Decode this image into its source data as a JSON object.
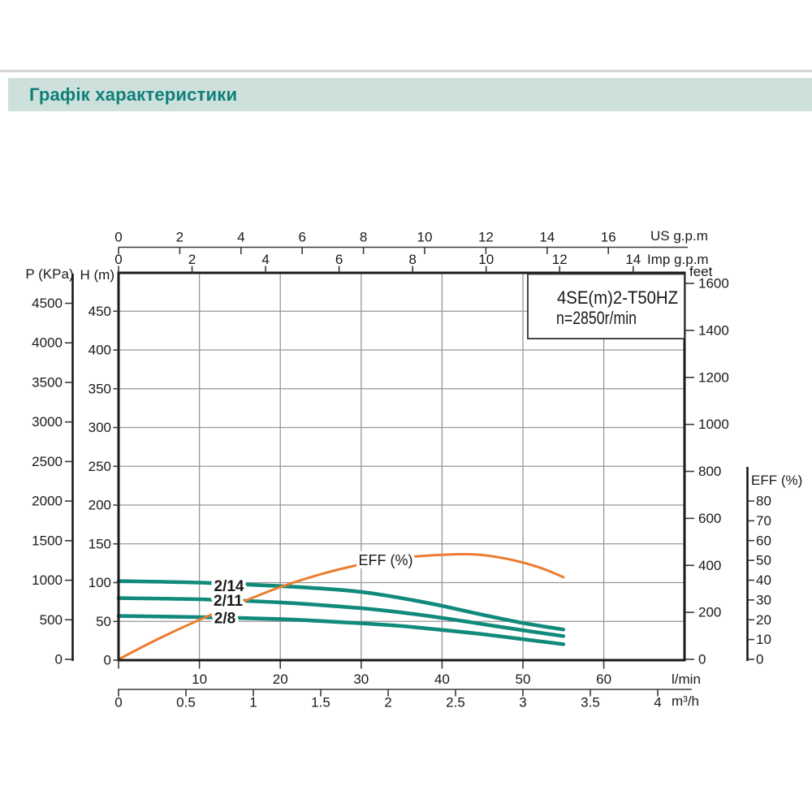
{
  "header": {
    "title": "Графік характеристики"
  },
  "colors": {
    "header_band_bg": "#cee0dc",
    "header_title": "#0f8078",
    "separator_gray": "#d4d4d4",
    "frame": "#1a1a1a",
    "grid": "#979797",
    "axis_text": "#1a1a1a",
    "curve_teal": "#118a7b",
    "curve_orange": "#ec7c30"
  },
  "chart_data": {
    "type": "line",
    "model_box": {
      "line1": "4SE(m)2-T50HZ",
      "line2": "n=2850r/min"
    },
    "x_axes": {
      "us_gpm": {
        "label": "US g.p.m",
        "ticks": [
          0,
          2,
          4,
          6,
          8,
          10,
          12,
          14,
          16
        ]
      },
      "imp_gpm": {
        "label": "Imp g.p.m",
        "ticks": [
          0,
          2,
          4,
          6,
          8,
          10,
          12,
          14
        ]
      },
      "l_min": {
        "label": "l/min",
        "ticks": [
          10,
          20,
          30,
          40,
          50,
          60
        ]
      },
      "m3_h": {
        "label": "m³/h",
        "ticks": [
          "0",
          "0.5",
          "1",
          "1.5",
          "2",
          "2.5",
          "3",
          "3.5",
          "4"
        ]
      }
    },
    "y_axes": {
      "h_m": {
        "label": "H (m)",
        "ticks": [
          0,
          50,
          100,
          150,
          200,
          250,
          300,
          350,
          400,
          450
        ],
        "range": [
          0,
          500
        ]
      },
      "p_kpa": {
        "label": "P (KPa)",
        "ticks": [
          0,
          500,
          1000,
          1500,
          2000,
          2500,
          3000,
          3500,
          4000,
          4500
        ]
      },
      "feet": {
        "label": "feet",
        "ticks": [
          0,
          200,
          400,
          600,
          800,
          1000,
          1200,
          1400,
          1600
        ]
      },
      "eff": {
        "label": "EFF (%)",
        "ticks": [
          0,
          10,
          20,
          30,
          40,
          50,
          60,
          70,
          80
        ]
      }
    },
    "grid": true,
    "series": [
      {
        "name": "2/14",
        "y_axis": "h_m",
        "color": "#118a7b",
        "units": "x = l/min, y = m head",
        "points": [
          [
            0,
            102
          ],
          [
            10,
            100
          ],
          [
            20,
            95.5
          ],
          [
            25,
            92.5
          ],
          [
            30,
            88
          ],
          [
            35,
            80
          ],
          [
            40,
            70
          ],
          [
            45,
            58.5
          ],
          [
            50,
            48
          ],
          [
            55,
            39.5
          ]
        ]
      },
      {
        "name": "2/11",
        "y_axis": "h_m",
        "color": "#118a7b",
        "units": "x = l/min, y = m head",
        "points": [
          [
            0,
            80
          ],
          [
            10,
            78.5
          ],
          [
            20,
            74.5
          ],
          [
            25,
            71
          ],
          [
            30,
            67
          ],
          [
            35,
            61.5
          ],
          [
            40,
            54.5
          ],
          [
            45,
            46.5
          ],
          [
            50,
            38.5
          ],
          [
            55,
            31
          ]
        ]
      },
      {
        "name": "2/8",
        "y_axis": "h_m",
        "color": "#118a7b",
        "units": "x = l/min, y = m head",
        "points": [
          [
            0,
            57
          ],
          [
            10,
            55.5
          ],
          [
            20,
            53
          ],
          [
            25,
            50.5
          ],
          [
            30,
            47.5
          ],
          [
            35,
            44
          ],
          [
            40,
            39
          ],
          [
            45,
            33.5
          ],
          [
            50,
            27
          ],
          [
            55,
            20.5
          ]
        ]
      },
      {
        "name": "EFF (%)",
        "y_axis": "eff",
        "color": "#ec7c30",
        "units": "x = l/min, y = efficiency %",
        "points": [
          [
            0,
            0
          ],
          [
            5,
            10.5
          ],
          [
            10,
            20
          ],
          [
            15,
            28.5
          ],
          [
            20,
            36.5
          ],
          [
            25,
            43
          ],
          [
            30,
            48
          ],
          [
            35,
            51.3
          ],
          [
            40,
            52.8
          ],
          [
            44,
            53
          ],
          [
            48,
            50.8
          ],
          [
            52,
            46.5
          ],
          [
            55,
            41.5
          ]
        ]
      }
    ]
  }
}
